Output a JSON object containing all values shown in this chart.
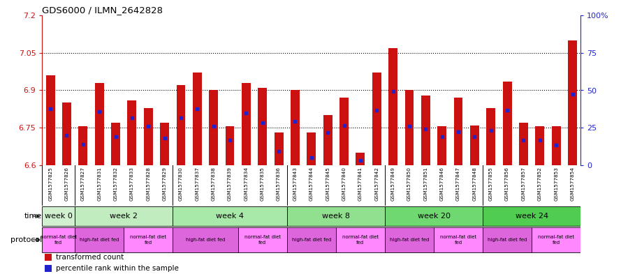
{
  "title": "GDS6000 / ILMN_2642828",
  "samples": [
    "GSM1577825",
    "GSM1577826",
    "GSM1577827",
    "GSM1577831",
    "GSM1577832",
    "GSM1577833",
    "GSM1577828",
    "GSM1577829",
    "GSM1577830",
    "GSM1577837",
    "GSM1577838",
    "GSM1577839",
    "GSM1577834",
    "GSM1577835",
    "GSM1577836",
    "GSM1577843",
    "GSM1577844",
    "GSM1577845",
    "GSM1577840",
    "GSM1577841",
    "GSM1577842",
    "GSM1577849",
    "GSM1577850",
    "GSM1577851",
    "GSM1577846",
    "GSM1577847",
    "GSM1577848",
    "GSM1577855",
    "GSM1577856",
    "GSM1577857",
    "GSM1577852",
    "GSM1577853",
    "GSM1577854"
  ],
  "bar_tops": [
    6.96,
    6.85,
    6.755,
    6.93,
    6.77,
    6.86,
    6.83,
    6.77,
    6.92,
    6.97,
    6.9,
    6.755,
    6.93,
    6.91,
    6.73,
    6.9,
    6.73,
    6.8,
    6.87,
    6.65,
    6.97,
    7.07,
    6.9,
    6.88,
    6.755,
    6.87,
    6.76,
    6.83,
    6.935,
    6.77,
    6.755,
    6.755,
    7.1
  ],
  "blue_positions": [
    6.825,
    6.72,
    6.685,
    6.815,
    6.715,
    6.79,
    6.755,
    6.71,
    6.79,
    6.825,
    6.755,
    6.7,
    6.81,
    6.77,
    6.655,
    6.775,
    6.63,
    6.73,
    6.76,
    6.62,
    6.82,
    6.895,
    6.755,
    6.745,
    6.715,
    6.735,
    6.715,
    6.74,
    6.82,
    6.7,
    6.7,
    6.68,
    6.885
  ],
  "bar_base": 6.6,
  "ylim_left": [
    6.6,
    7.2
  ],
  "ylim_right": [
    0,
    100
  ],
  "yticks_left": [
    6.6,
    6.75,
    6.9,
    7.05,
    7.2
  ],
  "ytick_left_labels": [
    "6.6",
    "6.75",
    "6.9",
    "7.05",
    "7.2"
  ],
  "yticks_right": [
    0,
    25,
    50,
    75,
    100
  ],
  "ytick_right_labels": [
    "0",
    "25",
    "50",
    "75",
    "100%"
  ],
  "grid_lines": [
    7.05,
    6.9,
    6.75
  ],
  "bar_color": "#cc1111",
  "blue_color": "#2222cc",
  "left_axis_color": "#cc1111",
  "right_axis_color": "#2222cc",
  "tick_bg": "#dddddd",
  "group_boundaries": [
    0,
    2,
    8,
    15,
    21,
    27,
    33
  ],
  "time_groups": [
    {
      "label": "week 0",
      "start": 0,
      "end": 2
    },
    {
      "label": "week 2",
      "start": 2,
      "end": 8
    },
    {
      "label": "week 4",
      "start": 8,
      "end": 15
    },
    {
      "label": "week 8",
      "start": 15,
      "end": 21
    },
    {
      "label": "week 20",
      "start": 21,
      "end": 27
    },
    {
      "label": "week 24",
      "start": 27,
      "end": 33
    }
  ],
  "time_colors": [
    "#d0f0d0",
    "#c0ecc0",
    "#a8e8a8",
    "#90e090",
    "#70d870",
    "#50cc50"
  ],
  "protocol_groups": [
    {
      "label": "normal-fat diet\nfed",
      "start": 0,
      "end": 2
    },
    {
      "label": "high-fat diet fed",
      "start": 2,
      "end": 5
    },
    {
      "label": "normal-fat diet\nfed",
      "start": 5,
      "end": 8
    },
    {
      "label": "high-fat diet fed",
      "start": 8,
      "end": 12
    },
    {
      "label": "normal-fat diet\nfed",
      "start": 12,
      "end": 15
    },
    {
      "label": "high-fat diet fed",
      "start": 15,
      "end": 18
    },
    {
      "label": "normal-fat diet\nfed",
      "start": 18,
      "end": 21
    },
    {
      "label": "high-fat diet fed",
      "start": 21,
      "end": 24
    },
    {
      "label": "normal-fat diet\nfed",
      "start": 24,
      "end": 27
    },
    {
      "label": "high-fat diet fed",
      "start": 27,
      "end": 30
    },
    {
      "label": "normal-fat diet\nfed",
      "start": 30,
      "end": 33
    }
  ],
  "protocol_colors": [
    "#ff88ff",
    "#dd66dd",
    "#ff88ff",
    "#dd66dd",
    "#ff88ff",
    "#dd66dd",
    "#ff88ff",
    "#dd66dd",
    "#ff88ff",
    "#dd66dd",
    "#ff88ff"
  ]
}
